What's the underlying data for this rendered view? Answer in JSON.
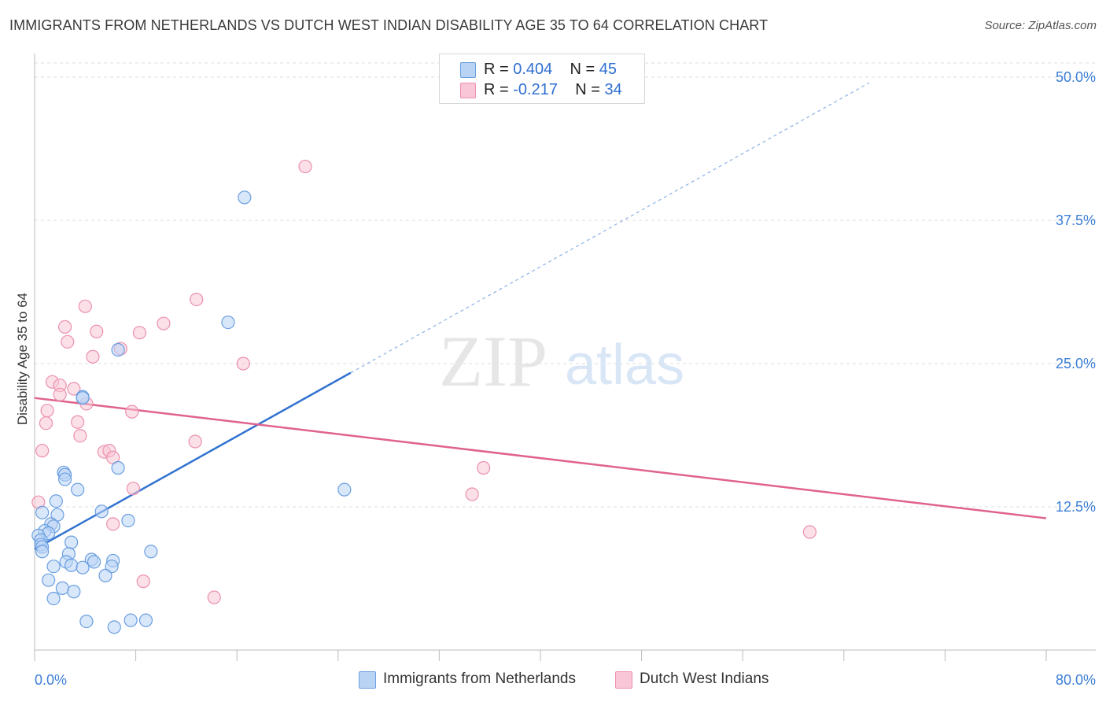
{
  "header": {
    "title": "IMMIGRANTS FROM NETHERLANDS VS DUTCH WEST INDIAN DISABILITY AGE 35 TO 64 CORRELATION CHART",
    "source": "Source: ZipAtlas.com"
  },
  "watermark": {
    "zip": "ZIP",
    "atlas": "atlas"
  },
  "legend": {
    "rows": [
      {
        "r_label": "R = ",
        "r_value": "0.404",
        "n_label": "N = ",
        "n_value": "45"
      },
      {
        "r_label": "R = ",
        "r_value": "-0.217",
        "n_label": "N = ",
        "n_value": "34"
      }
    ]
  },
  "bottom_legend": {
    "series1": "Immigrants from Netherlands",
    "series2": "Dutch West Indians"
  },
  "chart_data": {
    "type": "scatter",
    "title": "IMMIGRANTS FROM NETHERLANDS VS DUTCH WEST INDIAN DISABILITY AGE 35 TO 64 CORRELATION CHART",
    "xlabel": "",
    "ylabel": "Disability Age 35 to 64",
    "xlim": [
      0,
      80
    ],
    "ylim": [
      0,
      50
    ],
    "x_tick_labels": {
      "min": "0.0%",
      "max": "80.0%"
    },
    "y_ticks": [
      {
        "value": 12.5,
        "label": "12.5%"
      },
      {
        "value": 25.0,
        "label": "25.0%"
      },
      {
        "value": 37.5,
        "label": "37.5%"
      },
      {
        "value": 50.0,
        "label": "50.0%"
      }
    ],
    "colors": {
      "series1_fill": "#b9d3f5",
      "series1_stroke": "#6a9fe0",
      "series1_line": "#3273d0",
      "series2_fill": "#f8c6d6",
      "series2_stroke": "#ec90ae",
      "series2_line": "#e0638d",
      "grid": "#dddddd",
      "tick_text": "#3d7fd6"
    },
    "series": [
      {
        "name": "Immigrants from Netherlands",
        "r": 0.404,
        "n": 45,
        "trend": {
          "x0": 0,
          "y0": 8.8,
          "x1": 25,
          "y1": 24.2,
          "dash_x1": 66,
          "dash_y1": 49.5
        },
        "points": [
          [
            16.6,
            39.5
          ],
          [
            15.3,
            28.6
          ],
          [
            6.6,
            26.2
          ],
          [
            3.8,
            22.1
          ],
          [
            3.8,
            22.0
          ],
          [
            6.6,
            15.9
          ],
          [
            2.3,
            15.5
          ],
          [
            2.4,
            15.3
          ],
          [
            2.4,
            14.9
          ],
          [
            3.4,
            14.0
          ],
          [
            24.5,
            14.0
          ],
          [
            1.7,
            13.0
          ],
          [
            5.3,
            12.1
          ],
          [
            0.6,
            12.0
          ],
          [
            1.8,
            11.8
          ],
          [
            1.3,
            11.0
          ],
          [
            7.4,
            11.3
          ],
          [
            1.5,
            10.8
          ],
          [
            0.8,
            10.4
          ],
          [
            1.1,
            10.2
          ],
          [
            0.3,
            10.0
          ],
          [
            0.5,
            9.6
          ],
          [
            2.9,
            9.4
          ],
          [
            0.5,
            9.2
          ],
          [
            0.6,
            9.0
          ],
          [
            0.6,
            8.6
          ],
          [
            9.2,
            8.6
          ],
          [
            2.7,
            8.4
          ],
          [
            4.5,
            7.9
          ],
          [
            6.2,
            7.8
          ],
          [
            2.5,
            7.7
          ],
          [
            4.7,
            7.7
          ],
          [
            2.9,
            7.4
          ],
          [
            1.5,
            7.3
          ],
          [
            6.1,
            7.3
          ],
          [
            3.8,
            7.2
          ],
          [
            5.6,
            6.5
          ],
          [
            1.1,
            6.1
          ],
          [
            2.2,
            5.4
          ],
          [
            3.1,
            5.1
          ],
          [
            1.5,
            4.5
          ],
          [
            4.1,
            2.5
          ],
          [
            7.6,
            2.6
          ],
          [
            8.8,
            2.6
          ],
          [
            6.3,
            2.0
          ]
        ]
      },
      {
        "name": "Dutch West Indians",
        "r": -0.217,
        "n": 34,
        "trend": {
          "x0": 0,
          "y0": 22.0,
          "x1": 80,
          "y1": 11.5
        },
        "points": [
          [
            21.4,
            42.2
          ],
          [
            12.8,
            30.6
          ],
          [
            4.0,
            30.0
          ],
          [
            10.2,
            28.5
          ],
          [
            2.4,
            28.2
          ],
          [
            4.9,
            27.8
          ],
          [
            8.3,
            27.7
          ],
          [
            2.6,
            26.9
          ],
          [
            6.8,
            26.3
          ],
          [
            4.6,
            25.6
          ],
          [
            16.5,
            25.0
          ],
          [
            1.4,
            23.4
          ],
          [
            2.0,
            23.1
          ],
          [
            3.1,
            22.8
          ],
          [
            2.0,
            22.3
          ],
          [
            4.1,
            21.5
          ],
          [
            1.0,
            20.9
          ],
          [
            7.7,
            20.8
          ],
          [
            3.4,
            19.9
          ],
          [
            0.9,
            19.8
          ],
          [
            3.6,
            18.7
          ],
          [
            12.7,
            18.2
          ],
          [
            0.6,
            17.4
          ],
          [
            5.5,
            17.3
          ],
          [
            5.9,
            17.4
          ],
          [
            6.2,
            16.8
          ],
          [
            35.5,
            15.9
          ],
          [
            7.8,
            14.1
          ],
          [
            34.6,
            13.6
          ],
          [
            0.3,
            12.9
          ],
          [
            6.2,
            11.0
          ],
          [
            61.3,
            10.3
          ],
          [
            8.6,
            6.0
          ],
          [
            14.2,
            4.6
          ]
        ]
      }
    ]
  }
}
